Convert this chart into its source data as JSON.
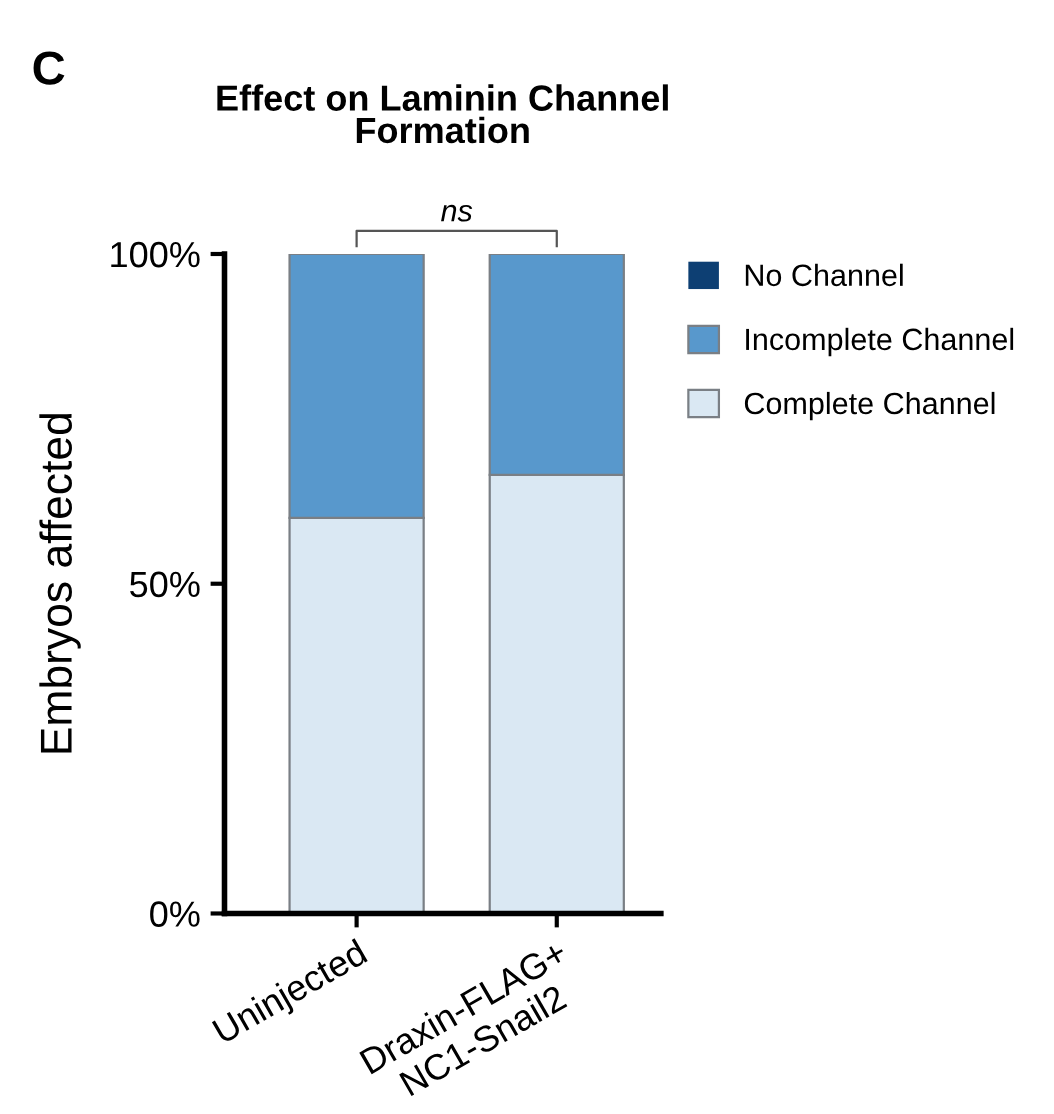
{
  "chart_data": {
    "type": "bar",
    "title": "Effect on Laminin Channel\nFormation",
    "ylabel": "Embryos affected",
    "categories": [
      "Uninjected",
      "Draxin-FLAG+\nNC1-Snail2"
    ],
    "series": [
      {
        "name": "Complete Channel",
        "color": "#dae8f3",
        "values": [
          60,
          66.5
        ]
      },
      {
        "name": "Incomplete Channel",
        "color": "#5898cc",
        "values": [
          40,
          33.5
        ]
      },
      {
        "name": "No Channel",
        "color": "#0d3f73",
        "values": [
          0,
          0
        ]
      }
    ],
    "stacked": true,
    "ylim": [
      0,
      100
    ],
    "yticks": [
      {
        "value": 0,
        "label": "0%"
      },
      {
        "value": 50,
        "label": "50%"
      },
      {
        "value": 100,
        "label": "100%"
      }
    ],
    "grid": false,
    "legend": "right",
    "annotations": [
      "C",
      "ns"
    ]
  }
}
